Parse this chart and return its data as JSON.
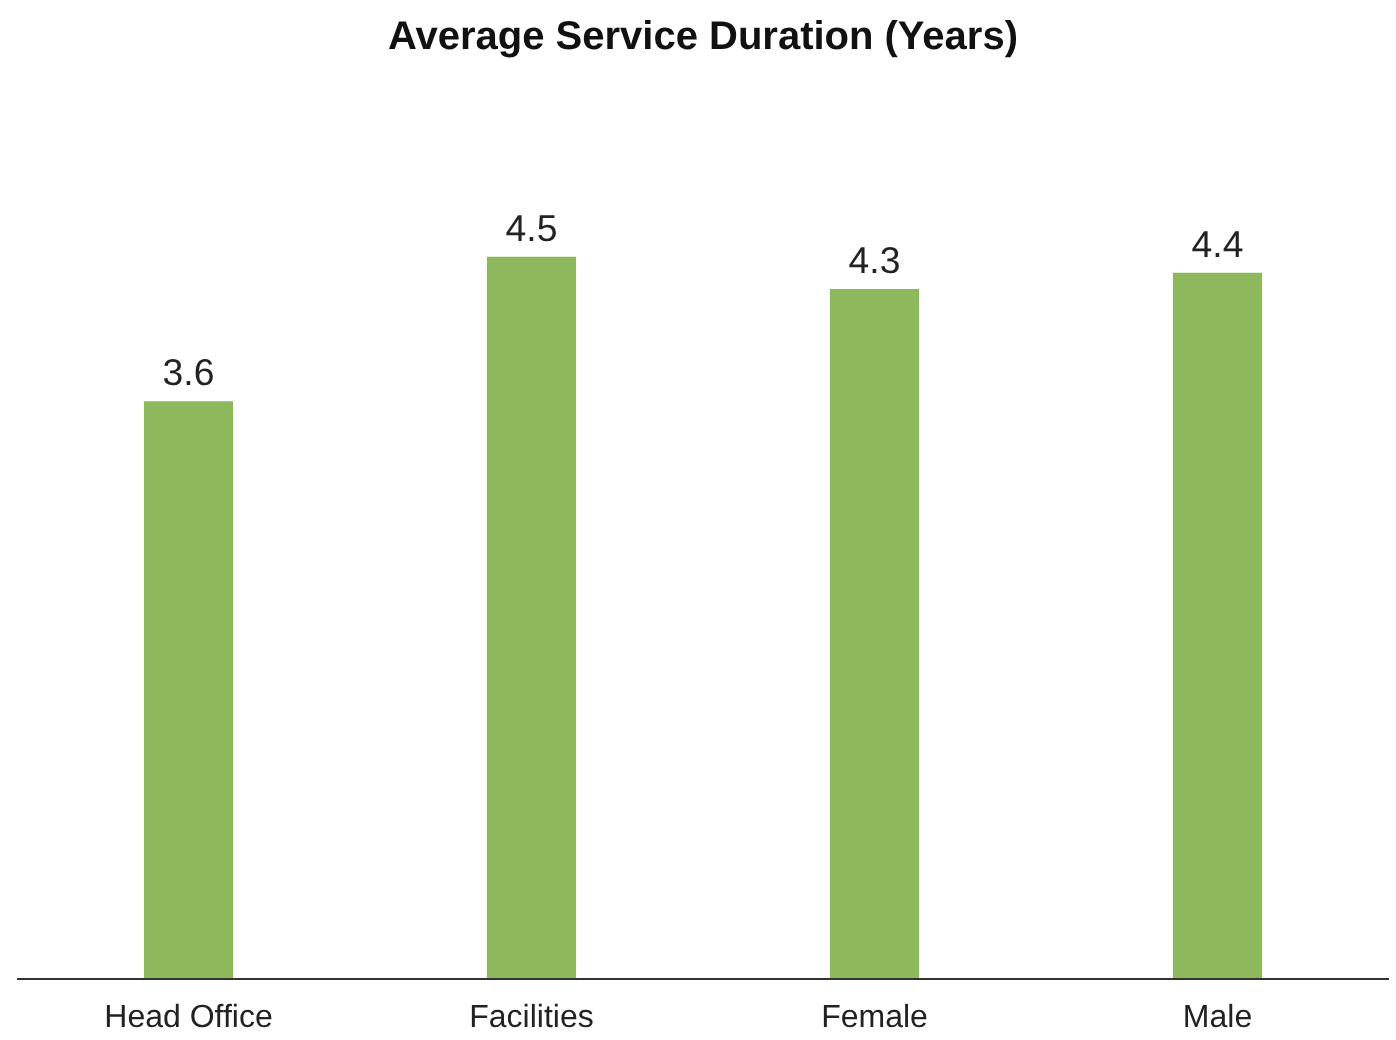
{
  "chart_data": {
    "type": "bar",
    "title": "Average Service Duration (Years)",
    "categories": [
      "Head Office",
      "Facilities",
      "Female",
      "Male"
    ],
    "values": [
      3.6,
      4.5,
      4.3,
      4.4
    ],
    "color": "#8db85b",
    "data_labels": true
  }
}
